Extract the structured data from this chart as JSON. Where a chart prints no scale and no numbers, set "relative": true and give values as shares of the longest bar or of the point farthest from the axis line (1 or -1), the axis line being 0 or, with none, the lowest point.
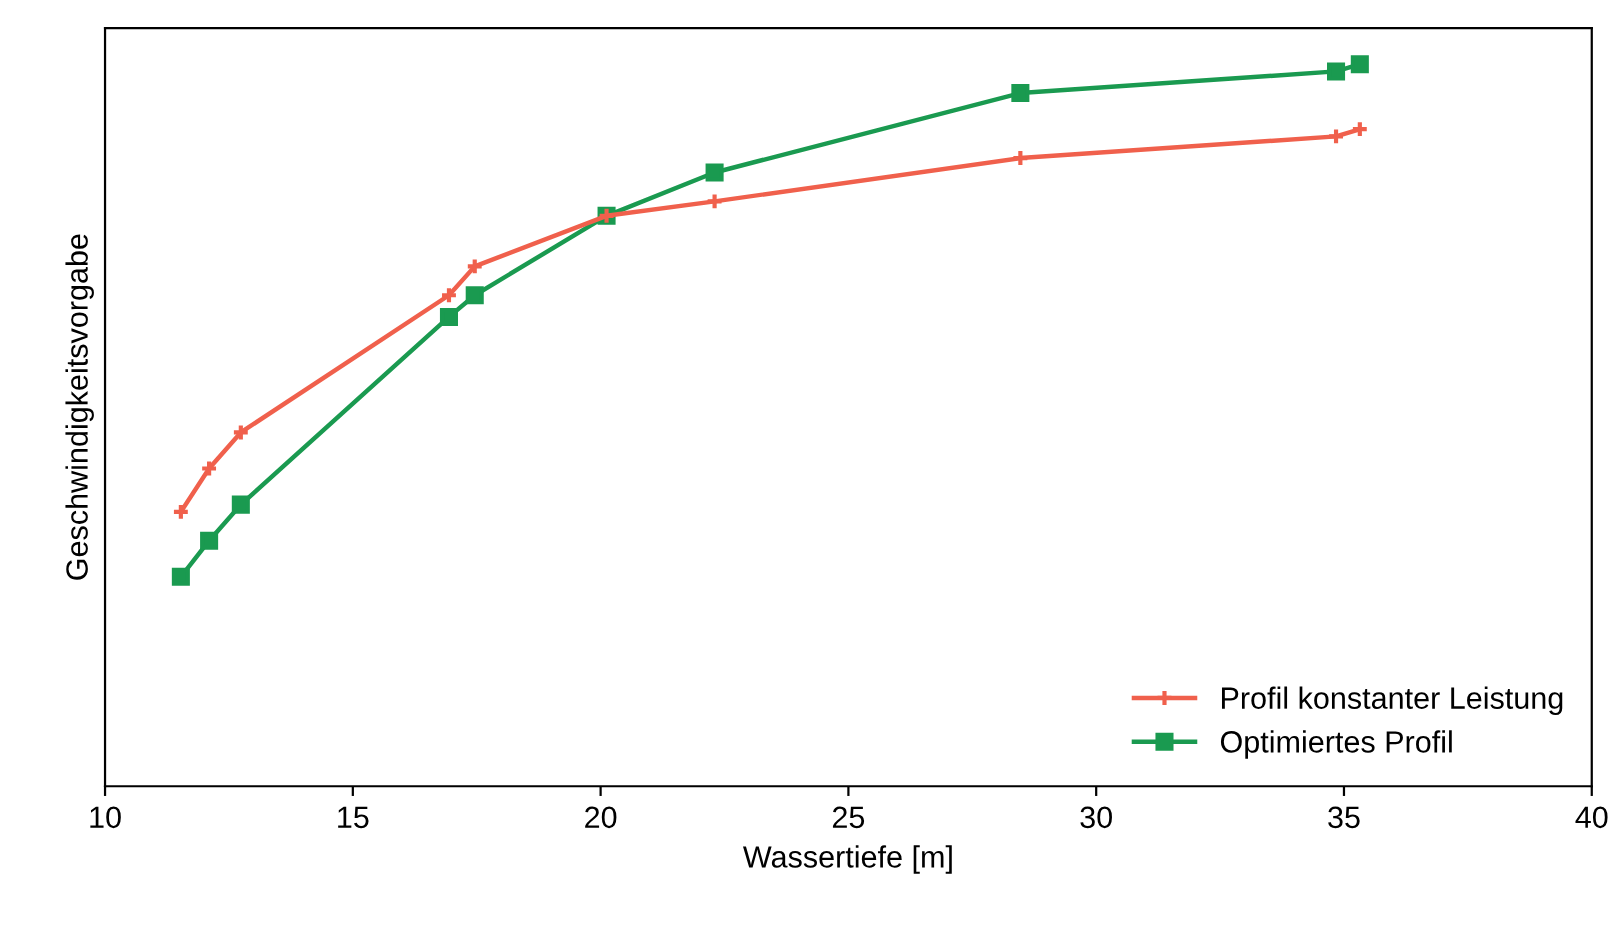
{
  "chart_data": {
    "type": "line",
    "xlabel": "Wassertiefe [m]",
    "ylabel": "Geschwindigkeitsvorgabe",
    "relative": true,
    "xlim": [
      10,
      40
    ],
    "xticks": [
      10,
      15,
      20,
      25,
      30,
      35,
      40
    ],
    "legend": "bottom right",
    "line_style": "solid",
    "x": [
      11.53,
      12.1,
      12.74,
      16.94,
      17.46,
      20.12,
      22.3,
      28.47,
      34.84,
      35.32
    ],
    "series": [
      {
        "name": "Profil konstanter Leistung",
        "color": "#f0604c",
        "marker": "cross",
        "values": [
          0.38,
          0.44,
          0.49,
          0.68,
          0.72,
          0.79,
          0.81,
          0.87,
          0.9,
          0.91
        ]
      },
      {
        "name": "Optimiertes Profil",
        "color": "#1a9a50",
        "marker": "square",
        "values": [
          0.29,
          0.34,
          0.39,
          0.65,
          0.68,
          0.79,
          0.85,
          0.96,
          0.99,
          1.0
        ]
      }
    ]
  }
}
